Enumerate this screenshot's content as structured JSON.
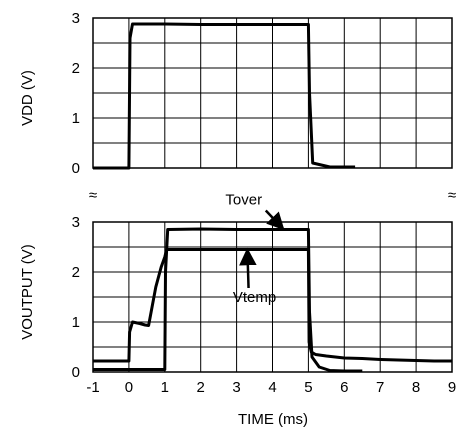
{
  "chart_data": [
    {
      "type": "line",
      "xlabel": "",
      "ylabel": "VDD (V)",
      "xlim": [
        -1,
        9
      ],
      "ylim": [
        0,
        3
      ],
      "grid": true,
      "yticks": [
        "0",
        "1",
        "2",
        "3"
      ],
      "series": [
        {
          "color": "#000000",
          "x": [
            -1,
            0,
            0.03,
            0.1,
            1,
            2,
            3,
            4,
            5,
            5.03,
            5.12,
            5.6,
            5.8,
            6.0,
            6.3
          ],
          "y": [
            0,
            0,
            2.6,
            2.88,
            2.88,
            2.87,
            2.87,
            2.87,
            2.87,
            1.5,
            0.1,
            0.02,
            0.02,
            0.02,
            0.02
          ]
        }
      ]
    },
    {
      "type": "line",
      "xlabel": "TIME (ms)",
      "ylabel": "VOUTPUT (V)",
      "xlim": [
        -1,
        9
      ],
      "ylim": [
        0,
        3
      ],
      "grid": true,
      "xticks": [
        "-1",
        "0",
        "1",
        "2",
        "3",
        "4",
        "5",
        "6",
        "7",
        "8",
        "9"
      ],
      "yticks": [
        "0",
        "1",
        "2",
        "3"
      ],
      "series": [
        {
          "name": "Tover",
          "color": "#000000",
          "x": [
            -1,
            0,
            1,
            1.02,
            1.08,
            2,
            3,
            4,
            5,
            5.03,
            5.1,
            5.3,
            5.6,
            6,
            6.5
          ],
          "y": [
            0.05,
            0.05,
            0.05,
            2.0,
            2.85,
            2.86,
            2.85,
            2.85,
            2.85,
            1.2,
            0.3,
            0.1,
            0.03,
            0.02,
            0.02
          ]
        },
        {
          "name": "Vtemp",
          "color": "#000000",
          "x": [
            -1,
            -0.2,
            0,
            0.02,
            0.1,
            0.3,
            0.45,
            0.55,
            0.75,
            0.9,
            1.0,
            1.05,
            2,
            3,
            4,
            5,
            5.02,
            5.08,
            5.2,
            5.5,
            6,
            6.5,
            7,
            7.5,
            8,
            8.5,
            9
          ],
          "y": [
            0.22,
            0.22,
            0.22,
            0.8,
            1.0,
            0.97,
            0.94,
            0.93,
            1.7,
            2.1,
            2.3,
            2.45,
            2.45,
            2.45,
            2.45,
            2.45,
            0.6,
            0.4,
            0.35,
            0.32,
            0.28,
            0.27,
            0.25,
            0.24,
            0.23,
            0.22,
            0.22
          ]
        }
      ],
      "annotations": [
        {
          "text": "Tover",
          "x": 3.2,
          "y": 3.35,
          "arrow_to": [
            4.3,
            2.86
          ]
        },
        {
          "text": "Vtemp",
          "x": 3.5,
          "y": 1.4,
          "arrow_to": [
            3.3,
            2.45
          ]
        }
      ],
      "break_marks": [
        "≈",
        "≈"
      ]
    }
  ]
}
